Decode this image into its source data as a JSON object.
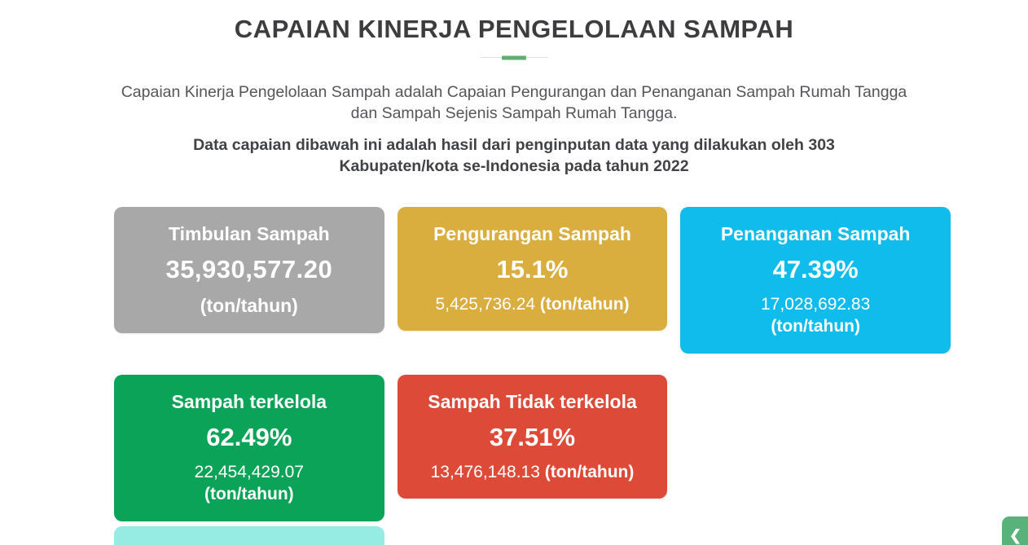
{
  "header": {
    "title": "CAPAIAN KINERJA PENGELOLAAN SAMPAH",
    "divider_accent_color": "#5fae72",
    "description": "Capaian Kinerja Pengelolaan Sampah adalah Capaian Pengurangan dan Penanganan Sampah Rumah Tangga dan Sampah Sejenis Sampah Rumah Tangga.",
    "note": "Data capaian dibawah ini adalah hasil dari penginputan data yang dilakukan oleh 303 Kabupaten/kota se-Indonesia pada tahun 2022"
  },
  "cards": [
    {
      "label": "Timbulan Sampah",
      "value": "35,930,577.20",
      "unit": "(ton/tahun)",
      "color": "#a8a8a8"
    },
    {
      "label": "Pengurangan Sampah",
      "percent": "15.1%",
      "amount": "5,425,736.24",
      "unit": "(ton/tahun)",
      "color": "#d9ad3e"
    },
    {
      "label": "Penanganan Sampah",
      "percent": "47.39%",
      "amount": "17,028,692.83",
      "unit": "(ton/tahun)",
      "color": "#0fbceb"
    },
    {
      "label": "Sampah terkelola",
      "percent": "62.49%",
      "amount": "22,454,429.07",
      "unit": "(ton/tahun)",
      "color": "#0ba358"
    },
    {
      "label": "Sampah Tidak terkelola",
      "percent": "37.51%",
      "amount": "13,476,148.13",
      "unit": "(ton/tahun)",
      "color": "#dd4b38"
    }
  ],
  "next_card_peek": {
    "color": "#96ebe2"
  },
  "floating_button": {
    "color": "#57b379",
    "glyph": "❮"
  }
}
